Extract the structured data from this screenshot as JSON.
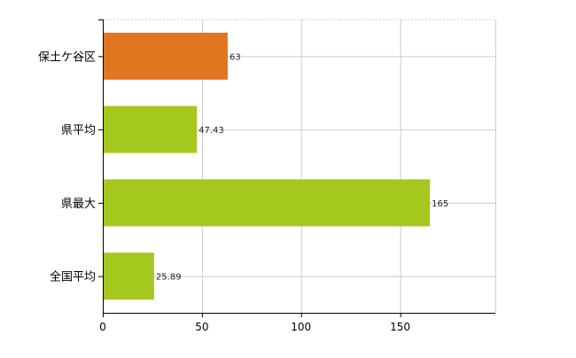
{
  "chart_data": {
    "type": "bar",
    "orientation": "horizontal",
    "categories": [
      "保土ケ谷区",
      "県平均",
      "県最大",
      "全国平均"
    ],
    "values": [
      63,
      47.43,
      165,
      25.89
    ],
    "value_labels": [
      "63",
      "47.43",
      "165",
      "25.89"
    ],
    "bar_colors": [
      "#e2761e",
      "#a4c81e",
      "#a4c81e",
      "#a4c81e"
    ],
    "title": "",
    "xlabel": "",
    "ylabel": "",
    "xlim": [
      0,
      198
    ],
    "x_ticks": [
      0,
      50,
      100,
      150
    ],
    "x_tick_labels": [
      "0",
      "50",
      "100",
      "150"
    ],
    "grid": true,
    "grid_color": "#cccccc",
    "axis_color": "#000000"
  }
}
